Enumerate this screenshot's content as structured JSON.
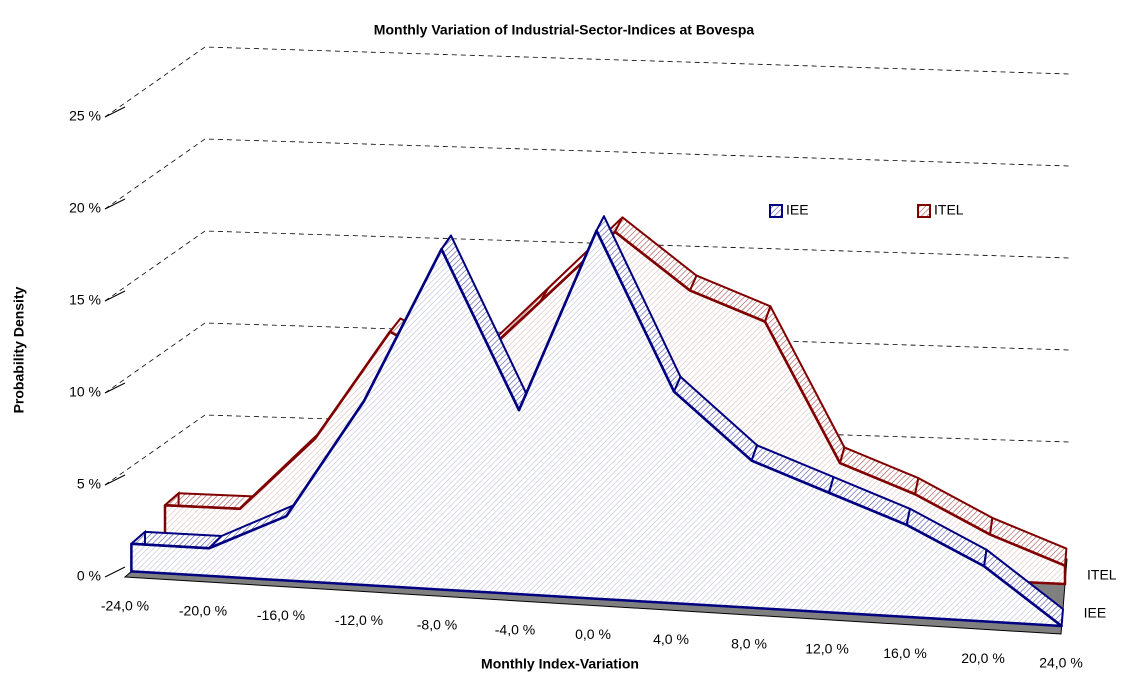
{
  "chart_data": {
    "type": "area3d",
    "title": "Monthly Variation of Industrial-Sector-Indices at Bovespa",
    "xlabel": "Monthly Index-Variation",
    "ylabel": "Probability Density",
    "categories": [
      "-24,0 %",
      "-20,0 %",
      "-16,0 %",
      "-12,0 %",
      "-8,0 %",
      "-4,0 %",
      "0,0 %",
      "4,0 %",
      "8,0 %",
      "12,0 %",
      "16,0 %",
      "20,0 %",
      "24,0 %"
    ],
    "series": [
      {
        "name": "IEE",
        "color": "#000080",
        "values": [
          1.5,
          1.5,
          3.5,
          10,
          18.5,
          10,
          20,
          11.5,
          8,
          6.5,
          5,
          3,
          0
        ]
      },
      {
        "name": "ITEL",
        "color": "#800000",
        "values": [
          2,
          2,
          6,
          12,
          10,
          14,
          18,
          15,
          13.5,
          6,
          4.5,
          2.5,
          1
        ]
      }
    ],
    "ylim": [
      0,
      25
    ],
    "yticks": [
      {
        "value": 0,
        "label": "0 %"
      },
      {
        "value": 5,
        "label": "5 %"
      },
      {
        "value": 10,
        "label": "10 %"
      },
      {
        "value": 15,
        "label": "15 %"
      },
      {
        "value": 20,
        "label": "20 %"
      },
      {
        "value": 25,
        "label": "25 %"
      }
    ],
    "grid": true,
    "legend": "top-right"
  }
}
